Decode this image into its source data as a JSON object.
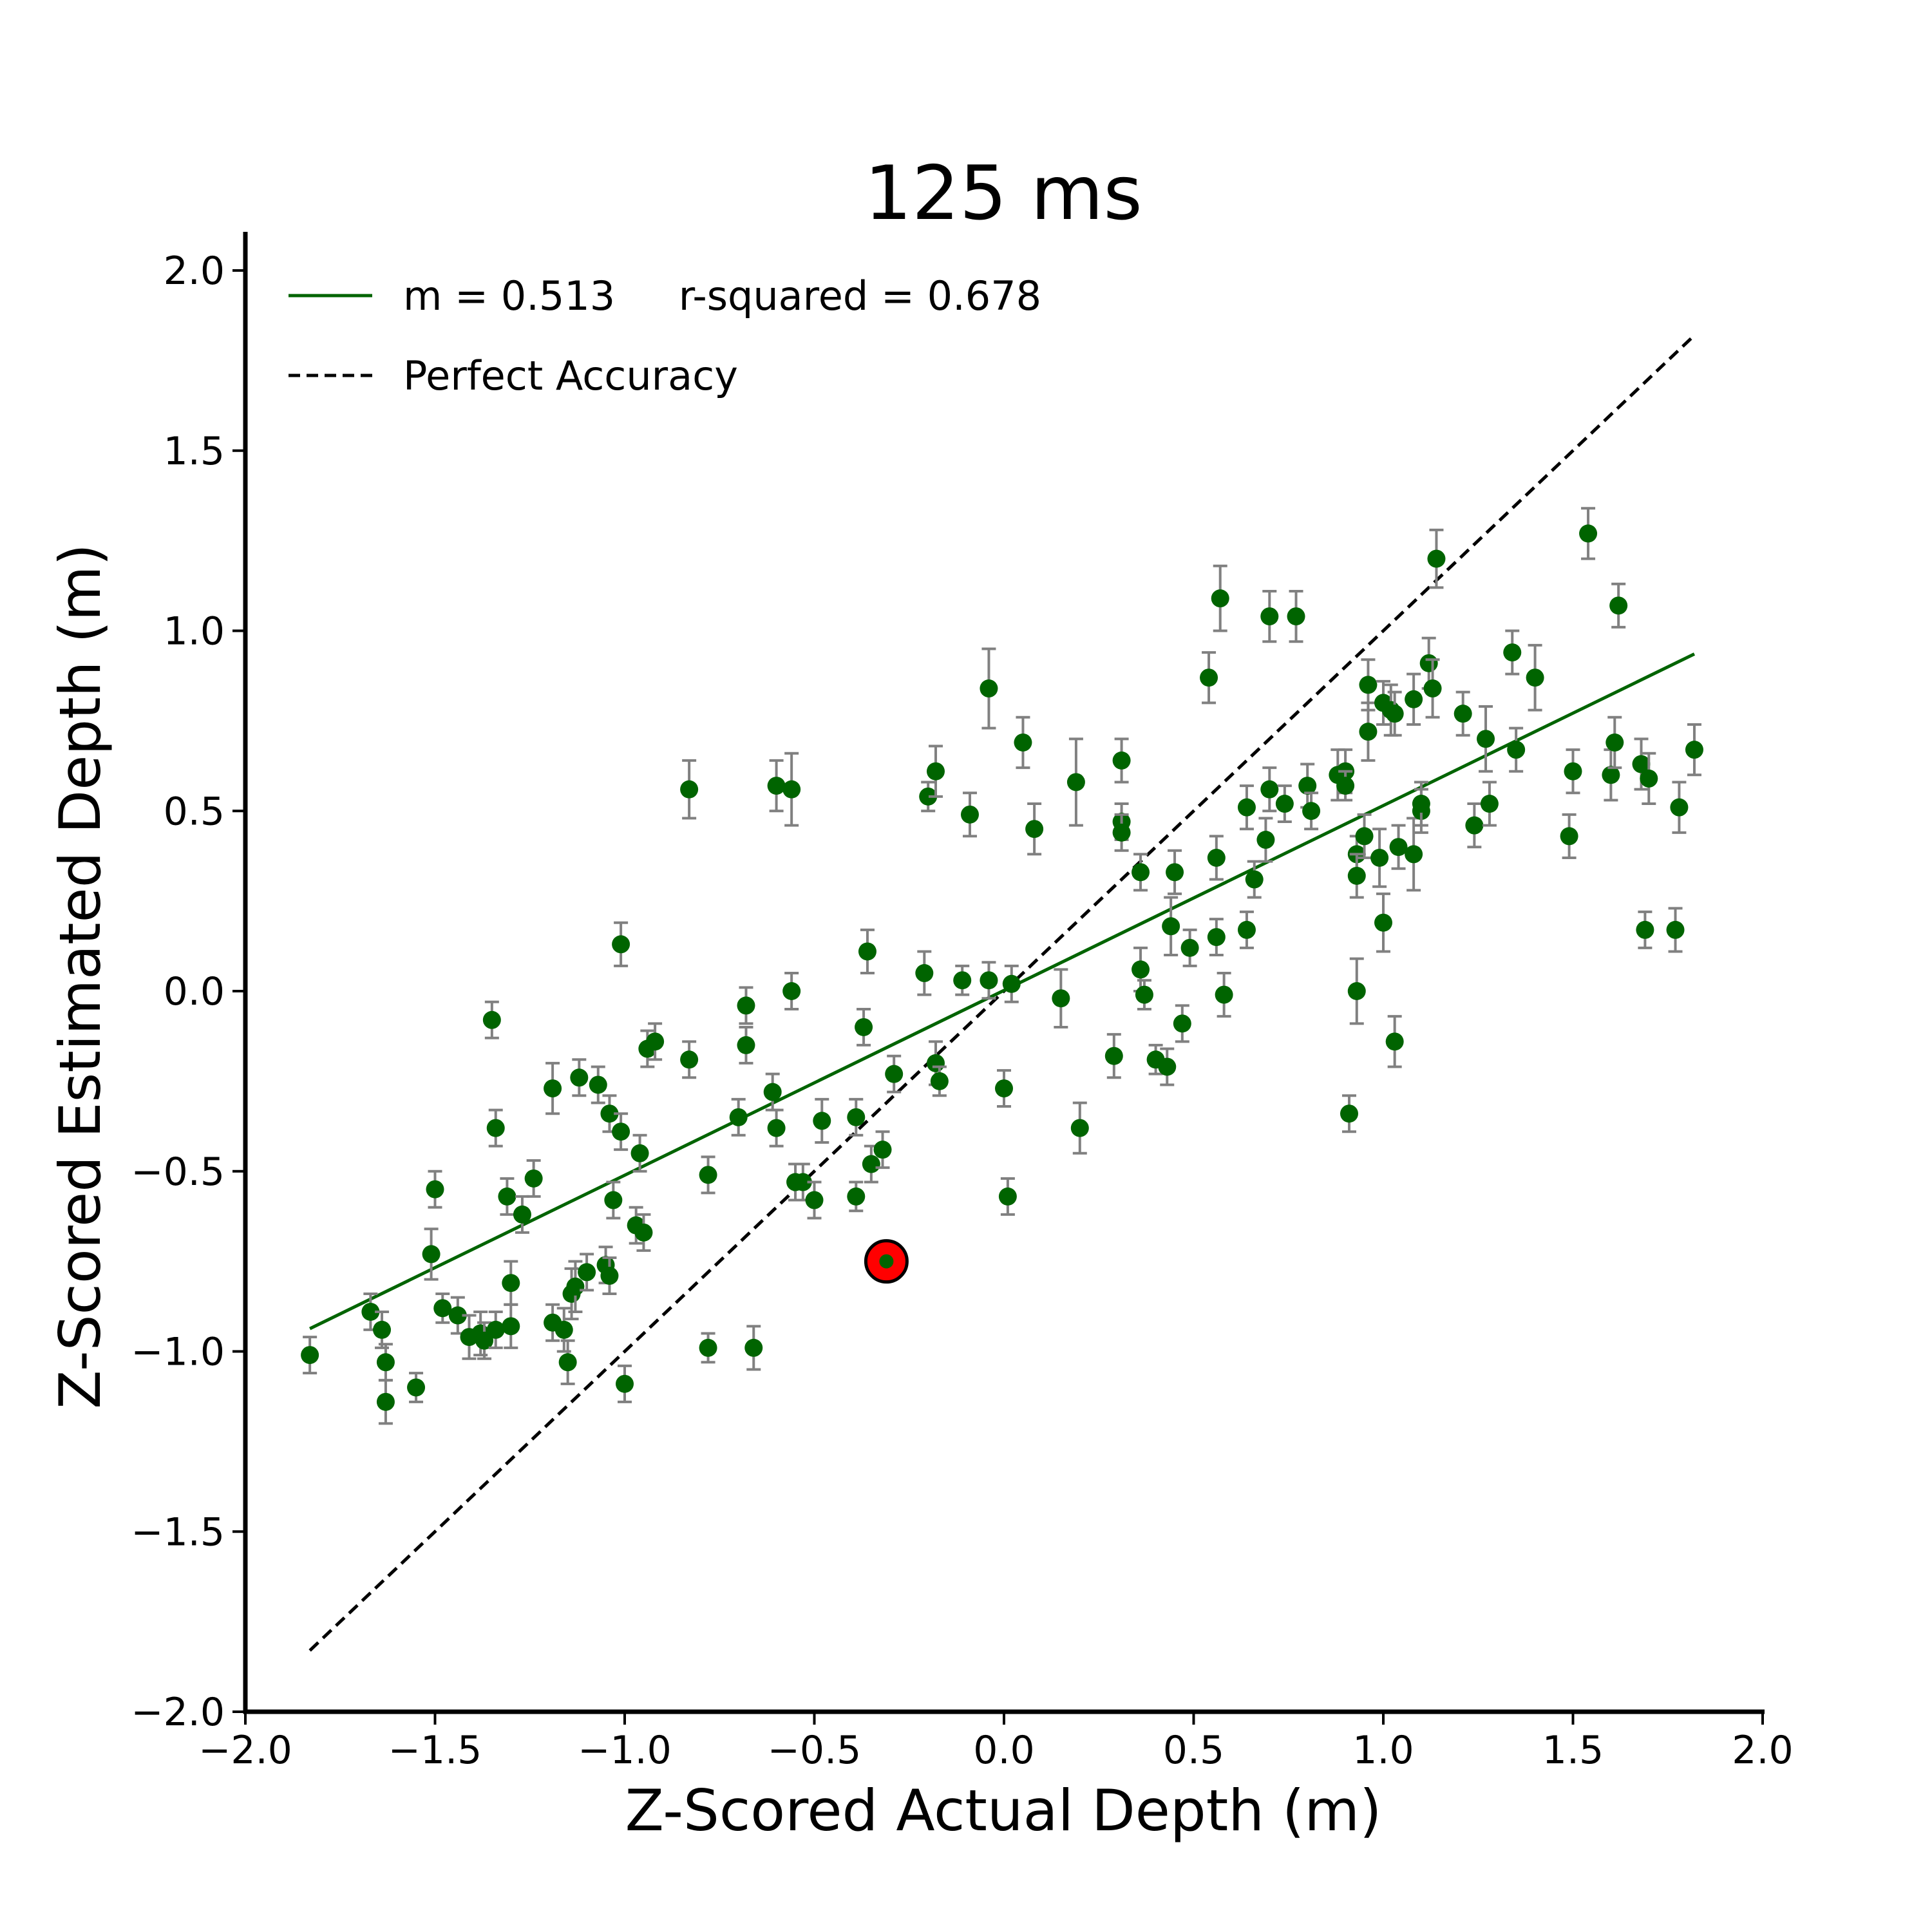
{
  "chart_data": {
    "type": "scatter",
    "title": "125 ms",
    "xlabel": "Z-Scored Actual Depth (m)",
    "ylabel": "Z-Scored Estimated Depth (m)",
    "xlim": [
      -2.0,
      2.0
    ],
    "ylim": [
      -2.0,
      2.0
    ],
    "xticks": [
      -2.0,
      -1.5,
      -1.0,
      -0.5,
      0.0,
      0.5,
      1.0,
      1.5,
      2.0
    ],
    "yticks": [
      -2.0,
      -1.5,
      -1.0,
      -0.5,
      0.0,
      0.5,
      1.0,
      1.5,
      2.0
    ],
    "xtick_labels": [
      "−2.0",
      "−1.5",
      "−1.0",
      "−0.5",
      "0.0",
      "0.5",
      "1.0",
      "1.5",
      "2.0"
    ],
    "ytick_labels": [
      "−2.0",
      "−1.5",
      "−1.0",
      "−0.5",
      "0.0",
      "0.5",
      "1.0",
      "1.5",
      "2.0"
    ],
    "grid": false,
    "legend_position": "top-left",
    "legend": [
      {
        "label": "m = 0.513     r-squared = 0.678",
        "style": "solid",
        "color": "#006400"
      },
      {
        "label": "Perfect Accuracy",
        "style": "dashed",
        "color": "#000000"
      }
    ],
    "fit_line": {
      "slope": 0.513,
      "intercept": 0.002,
      "x": [
        -1.83,
        1.82
      ],
      "color": "#006400"
    },
    "identity_line": {
      "x": [
        -1.83,
        1.82
      ],
      "color": "#000000"
    },
    "point_color": "#006400",
    "errorbar_color": "#808080",
    "highlight": {
      "x": -0.31,
      "y": -0.75,
      "fill": "#ff0000",
      "stroke": "#000000"
    },
    "points": [
      [
        -1.83,
        -1.01,
        0.05
      ],
      [
        -1.67,
        -0.89,
        0.05
      ],
      [
        -1.64,
        -0.94,
        0.05
      ],
      [
        -1.63,
        -1.03,
        0.05
      ],
      [
        -1.63,
        -1.14,
        0.06
      ],
      [
        -1.55,
        -1.1,
        0.04
      ],
      [
        -1.51,
        -0.73,
        0.07
      ],
      [
        -1.5,
        -0.55,
        0.05
      ],
      [
        -1.48,
        -0.88,
        0.04
      ],
      [
        -1.44,
        -0.9,
        0.05
      ],
      [
        -1.41,
        -0.96,
        0.06
      ],
      [
        -1.38,
        -0.95,
        0.06
      ],
      [
        -1.37,
        -0.97,
        0.05
      ],
      [
        -1.35,
        -0.08,
        0.05
      ],
      [
        -1.34,
        -0.94,
        0.05
      ],
      [
        -1.34,
        -0.38,
        0.05
      ],
      [
        -1.31,
        -0.57,
        0.05
      ],
      [
        -1.3,
        -0.81,
        0.06
      ],
      [
        -1.3,
        -0.93,
        0.06
      ],
      [
        -1.27,
        -0.62,
        0.05
      ],
      [
        -1.24,
        -0.52,
        0.05
      ],
      [
        -1.19,
        -0.27,
        0.07
      ],
      [
        -1.19,
        -0.92,
        0.05
      ],
      [
        -1.16,
        -0.94,
        0.06
      ],
      [
        -1.15,
        -1.03,
        0.06
      ],
      [
        -1.14,
        -0.84,
        0.07
      ],
      [
        -1.13,
        -0.82,
        0.07
      ],
      [
        -1.12,
        -0.24,
        0.05
      ],
      [
        -1.1,
        -0.78,
        0.05
      ],
      [
        -1.07,
        -0.26,
        0.05
      ],
      [
        -1.05,
        -0.76,
        0.05
      ],
      [
        -1.04,
        -0.79,
        0.05
      ],
      [
        -1.04,
        -0.34,
        0.05
      ],
      [
        -1.03,
        -0.58,
        0.05
      ],
      [
        -1.01,
        0.13,
        0.06
      ],
      [
        -1.01,
        -0.39,
        0.05
      ],
      [
        -1.0,
        -1.09,
        0.05
      ],
      [
        -0.97,
        -0.65,
        0.05
      ],
      [
        -0.96,
        -0.45,
        0.05
      ],
      [
        -0.95,
        -0.67,
        0.05
      ],
      [
        -0.94,
        -0.16,
        0.05
      ],
      [
        -0.92,
        -0.14,
        0.05
      ],
      [
        -0.83,
        0.56,
        0.08
      ],
      [
        -0.83,
        -0.19,
        0.05
      ],
      [
        -0.78,
        -0.51,
        0.05
      ],
      [
        -0.78,
        -0.99,
        0.04
      ],
      [
        -0.7,
        -0.35,
        0.05
      ],
      [
        -0.68,
        -0.04,
        0.05
      ],
      [
        -0.68,
        -0.15,
        0.05
      ],
      [
        -0.66,
        -0.99,
        0.06
      ],
      [
        -0.61,
        -0.28,
        0.05
      ],
      [
        -0.6,
        0.57,
        0.07
      ],
      [
        -0.6,
        -0.38,
        0.05
      ],
      [
        -0.56,
        0.56,
        0.1
      ],
      [
        -0.56,
        0.0,
        0.05
      ],
      [
        -0.55,
        -0.53,
        0.05
      ],
      [
        -0.53,
        -0.53,
        0.05
      ],
      [
        -0.5,
        -0.58,
        0.05
      ],
      [
        -0.48,
        -0.36,
        0.06
      ],
      [
        -0.39,
        -0.35,
        0.05
      ],
      [
        -0.39,
        -0.57,
        0.04
      ],
      [
        -0.37,
        -0.1,
        0.05
      ],
      [
        -0.36,
        0.11,
        0.06
      ],
      [
        -0.35,
        -0.48,
        0.05
      ],
      [
        -0.32,
        -0.44,
        0.05
      ],
      [
        -0.29,
        -0.23,
        0.05
      ],
      [
        -0.21,
        0.05,
        0.06
      ],
      [
        -0.2,
        0.54,
        0.04
      ],
      [
        -0.18,
        0.61,
        0.07
      ],
      [
        -0.18,
        -0.2,
        0.06
      ],
      [
        -0.17,
        -0.25,
        0.04
      ],
      [
        -0.11,
        0.03,
        0.04
      ],
      [
        -0.09,
        0.49,
        0.06
      ],
      [
        -0.04,
        0.84,
        0.11
      ],
      [
        -0.04,
        0.03,
        0.05
      ],
      [
        0.0,
        -0.27,
        0.05
      ],
      [
        0.01,
        -0.57,
        0.05
      ],
      [
        0.02,
        0.02,
        0.05
      ],
      [
        0.05,
        0.69,
        0.07
      ],
      [
        0.08,
        0.45,
        0.07
      ],
      [
        0.15,
        -0.02,
        0.08
      ],
      [
        0.19,
        0.58,
        0.12
      ],
      [
        0.2,
        -0.38,
        0.07
      ],
      [
        0.29,
        -0.18,
        0.06
      ],
      [
        0.31,
        0.47,
        0.05
      ],
      [
        0.31,
        0.44,
        0.05
      ],
      [
        0.31,
        0.64,
        0.06
      ],
      [
        0.36,
        0.33,
        0.05
      ],
      [
        0.36,
        0.06,
        0.06
      ],
      [
        0.37,
        -0.01,
        0.04
      ],
      [
        0.4,
        -0.19,
        0.04
      ],
      [
        0.43,
        -0.21,
        0.05
      ],
      [
        0.44,
        0.18,
        0.08
      ],
      [
        0.45,
        0.33,
        0.06
      ],
      [
        0.47,
        -0.09,
        0.05
      ],
      [
        0.49,
        0.12,
        0.05
      ],
      [
        0.54,
        0.87,
        0.07
      ],
      [
        0.56,
        0.37,
        0.06
      ],
      [
        0.56,
        0.15,
        0.05
      ],
      [
        0.57,
        1.09,
        0.09
      ],
      [
        0.58,
        -0.01,
        0.06
      ],
      [
        0.64,
        0.51,
        0.06
      ],
      [
        0.64,
        0.17,
        0.05
      ],
      [
        0.66,
        0.31,
        0.05
      ],
      [
        0.69,
        0.42,
        0.06
      ],
      [
        0.7,
        0.56,
        0.06
      ],
      [
        0.7,
        1.04,
        0.07
      ],
      [
        0.74,
        0.52,
        0.05
      ],
      [
        0.77,
        1.04,
        0.07
      ],
      [
        0.8,
        0.57,
        0.06
      ],
      [
        0.81,
        0.5,
        0.05
      ],
      [
        0.88,
        0.6,
        0.07
      ],
      [
        0.9,
        0.61,
        0.06
      ],
      [
        0.9,
        0.57,
        0.04
      ],
      [
        0.91,
        -0.34,
        0.05
      ],
      [
        0.93,
        0.38,
        0.05
      ],
      [
        0.93,
        0.0,
        0.09
      ],
      [
        0.93,
        0.32,
        0.06
      ],
      [
        0.95,
        0.43,
        0.06
      ],
      [
        0.96,
        0.72,
        0.08
      ],
      [
        0.96,
        0.85,
        0.07
      ],
      [
        0.99,
        0.37,
        0.08
      ],
      [
        1.0,
        0.8,
        0.06
      ],
      [
        1.0,
        0.19,
        0.08
      ],
      [
        1.02,
        0.78,
        0.07
      ],
      [
        1.03,
        -0.14,
        0.07
      ],
      [
        1.03,
        0.77,
        0.06
      ],
      [
        1.04,
        0.4,
        0.06
      ],
      [
        1.08,
        0.38,
        0.1
      ],
      [
        1.08,
        0.81,
        0.07
      ],
      [
        1.1,
        0.5,
        0.06
      ],
      [
        1.1,
        0.52,
        0.06
      ],
      [
        1.12,
        0.91,
        0.07
      ],
      [
        1.13,
        0.84,
        0.08
      ],
      [
        1.14,
        1.2,
        0.08
      ],
      [
        1.21,
        0.77,
        0.06
      ],
      [
        1.24,
        0.46,
        0.06
      ],
      [
        1.27,
        0.7,
        0.09
      ],
      [
        1.28,
        0.52,
        0.06
      ],
      [
        1.34,
        0.94,
        0.06
      ],
      [
        1.35,
        0.67,
        0.06
      ],
      [
        1.4,
        0.87,
        0.09
      ],
      [
        1.49,
        0.43,
        0.06
      ],
      [
        1.5,
        0.61,
        0.06
      ],
      [
        1.54,
        1.27,
        0.07
      ],
      [
        1.6,
        0.6,
        0.07
      ],
      [
        1.61,
        0.69,
        0.07
      ],
      [
        1.62,
        1.07,
        0.06
      ],
      [
        1.68,
        0.63,
        0.07
      ],
      [
        1.69,
        0.17,
        0.05
      ],
      [
        1.7,
        0.59,
        0.07
      ],
      [
        1.77,
        0.17,
        0.06
      ],
      [
        1.78,
        0.51,
        0.07
      ],
      [
        1.82,
        0.67,
        0.07
      ]
    ]
  }
}
